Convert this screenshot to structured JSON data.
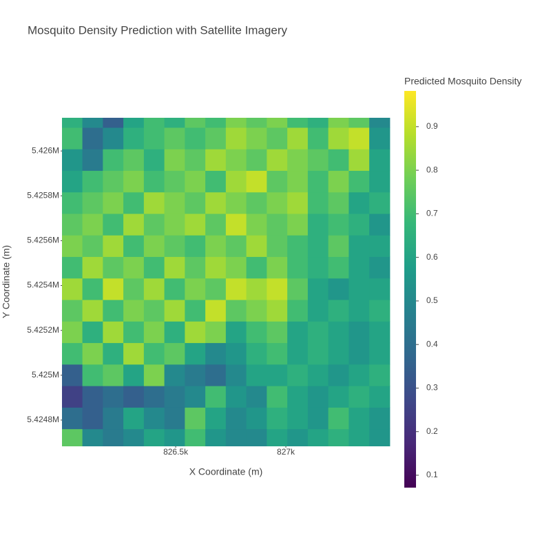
{
  "chart_data": {
    "type": "heatmap",
    "title": "Mosquito Density Prediction with Satellite Imagery",
    "x_label": "X Coordinate (m)",
    "y_label": "Y Coordinate (m)",
    "colorbar_title": "Predicted Mosquito Density",
    "colorscale": "Viridis",
    "xlim": [
      825984,
      827475
    ],
    "ylim": [
      5424683,
      5426148
    ],
    "xticks": [
      {
        "value": 826500,
        "label": "826.5k"
      },
      {
        "value": 827000,
        "label": "827k"
      }
    ],
    "yticks": [
      {
        "value": 5424800,
        "label": "5.4248M"
      },
      {
        "value": 5425000,
        "label": "5.425M"
      },
      {
        "value": 5425200,
        "label": "5.4252M"
      },
      {
        "value": 5425400,
        "label": "5.4254M"
      },
      {
        "value": 5425600,
        "label": "5.4256M"
      },
      {
        "value": 5425800,
        "label": "5.4258M"
      },
      {
        "value": 5426000,
        "label": "5.426M"
      }
    ],
    "zlim": [
      0.0715,
      0.982
    ],
    "zticks": [
      0.1,
      0.2,
      0.3,
      0.4,
      0.5,
      0.6,
      0.7,
      0.8,
      0.9
    ],
    "x": [
      826030,
      826123,
      826216,
      826309,
      826402,
      826495,
      826588,
      826681,
      826774,
      826867,
      826960,
      827053,
      827146,
      827239,
      827332,
      827425
    ],
    "y": [
      5424713,
      5424809,
      5424905,
      5425001,
      5425097,
      5425193,
      5425289,
      5425385,
      5425481,
      5425577,
      5425673,
      5425769,
      5425865,
      5425961,
      5426057,
      5426153
    ],
    "z": [
      [
        0.75,
        0.5,
        0.45,
        0.5,
        0.6,
        0.55,
        0.7,
        0.55,
        0.5,
        0.5,
        0.6,
        0.55,
        0.6,
        0.65,
        0.6,
        0.55
      ],
      [
        0.4,
        0.35,
        0.45,
        0.6,
        0.5,
        0.45,
        0.75,
        0.6,
        0.5,
        0.55,
        0.65,
        0.6,
        0.55,
        0.7,
        0.6,
        0.55
      ],
      [
        0.25,
        0.35,
        0.4,
        0.35,
        0.4,
        0.45,
        0.5,
        0.7,
        0.55,
        0.5,
        0.7,
        0.6,
        0.55,
        0.6,
        0.65,
        0.6
      ],
      [
        0.35,
        0.7,
        0.75,
        0.6,
        0.8,
        0.5,
        0.45,
        0.4,
        0.5,
        0.6,
        0.6,
        0.65,
        0.6,
        0.55,
        0.6,
        0.65
      ],
      [
        0.7,
        0.8,
        0.65,
        0.85,
        0.7,
        0.75,
        0.6,
        0.5,
        0.55,
        0.65,
        0.7,
        0.6,
        0.65,
        0.6,
        0.55,
        0.6
      ],
      [
        0.8,
        0.65,
        0.85,
        0.7,
        0.8,
        0.65,
        0.85,
        0.8,
        0.6,
        0.7,
        0.75,
        0.6,
        0.65,
        0.6,
        0.55,
        0.6
      ],
      [
        0.75,
        0.85,
        0.7,
        0.8,
        0.75,
        0.85,
        0.7,
        0.9,
        0.75,
        0.8,
        0.85,
        0.7,
        0.6,
        0.65,
        0.6,
        0.65
      ],
      [
        0.85,
        0.7,
        0.9,
        0.75,
        0.85,
        0.7,
        0.8,
        0.75,
        0.9,
        0.85,
        0.9,
        0.75,
        0.6,
        0.55,
        0.6,
        0.6
      ],
      [
        0.7,
        0.85,
        0.75,
        0.8,
        0.7,
        0.85,
        0.75,
        0.85,
        0.8,
        0.7,
        0.8,
        0.7,
        0.65,
        0.7,
        0.6,
        0.55
      ],
      [
        0.8,
        0.75,
        0.85,
        0.7,
        0.8,
        0.75,
        0.7,
        0.8,
        0.75,
        0.85,
        0.75,
        0.7,
        0.65,
        0.75,
        0.6,
        0.6
      ],
      [
        0.75,
        0.8,
        0.7,
        0.85,
        0.75,
        0.8,
        0.85,
        0.75,
        0.9,
        0.8,
        0.75,
        0.8,
        0.65,
        0.7,
        0.65,
        0.55
      ],
      [
        0.7,
        0.75,
        0.8,
        0.7,
        0.85,
        0.8,
        0.75,
        0.85,
        0.8,
        0.75,
        0.8,
        0.85,
        0.7,
        0.75,
        0.6,
        0.65
      ],
      [
        0.6,
        0.7,
        0.75,
        0.8,
        0.7,
        0.75,
        0.8,
        0.7,
        0.85,
        0.9,
        0.75,
        0.8,
        0.7,
        0.8,
        0.7,
        0.6
      ],
      [
        0.55,
        0.45,
        0.7,
        0.75,
        0.65,
        0.8,
        0.75,
        0.85,
        0.8,
        0.75,
        0.85,
        0.8,
        0.75,
        0.7,
        0.85,
        0.6
      ],
      [
        0.7,
        0.4,
        0.5,
        0.65,
        0.7,
        0.75,
        0.7,
        0.75,
        0.85,
        0.8,
        0.75,
        0.85,
        0.7,
        0.85,
        0.9,
        0.55
      ],
      [
        0.65,
        0.5,
        0.35,
        0.6,
        0.7,
        0.65,
        0.75,
        0.7,
        0.8,
        0.75,
        0.8,
        0.7,
        0.65,
        0.8,
        0.75,
        0.5
      ]
    ]
  }
}
